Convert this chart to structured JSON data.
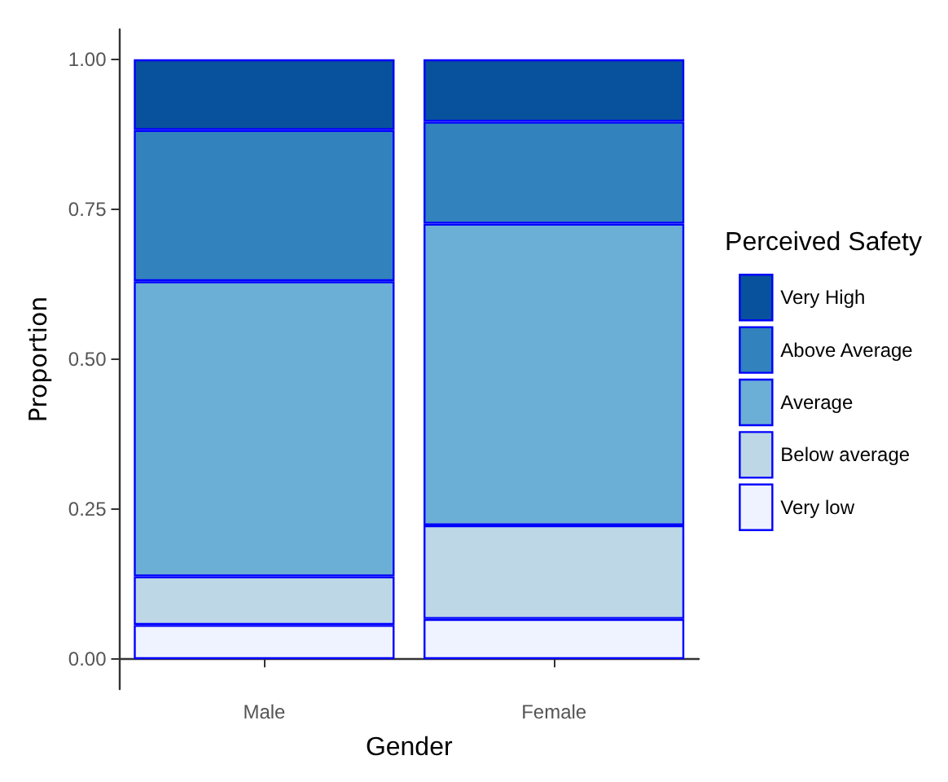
{
  "chart_data": {
    "type": "bar",
    "stacked": true,
    "xlabel": "Gender",
    "ylabel": "Proportion",
    "legend_title": "Perceived Safety",
    "legend": "right",
    "grid": false,
    "categories": [
      "Male",
      "Female"
    ],
    "series": [
      {
        "name": "Very low",
        "color": "#eff3ff",
        "values": [
          0.057,
          0.067
        ]
      },
      {
        "name": "Below average",
        "color": "#bdd7e7",
        "values": [
          0.081,
          0.156
        ]
      },
      {
        "name": "Average",
        "color": "#6baed6",
        "values": [
          0.492,
          0.503
        ]
      },
      {
        "name": "Above Average",
        "color": "#3182bd",
        "values": [
          0.252,
          0.17
        ]
      },
      {
        "name": "Very High",
        "color": "#08519c",
        "values": [
          0.118,
          0.104
        ]
      }
    ],
    "ylim": [
      -0.05,
      1.05
    ],
    "yticks": [
      {
        "value": 0,
        "label": "0.00"
      },
      {
        "value": 0.25,
        "label": "0.25"
      },
      {
        "value": 0.5,
        "label": "0.50"
      },
      {
        "value": 0.75,
        "label": "0.75"
      },
      {
        "value": 1,
        "label": "1.00"
      }
    ]
  }
}
